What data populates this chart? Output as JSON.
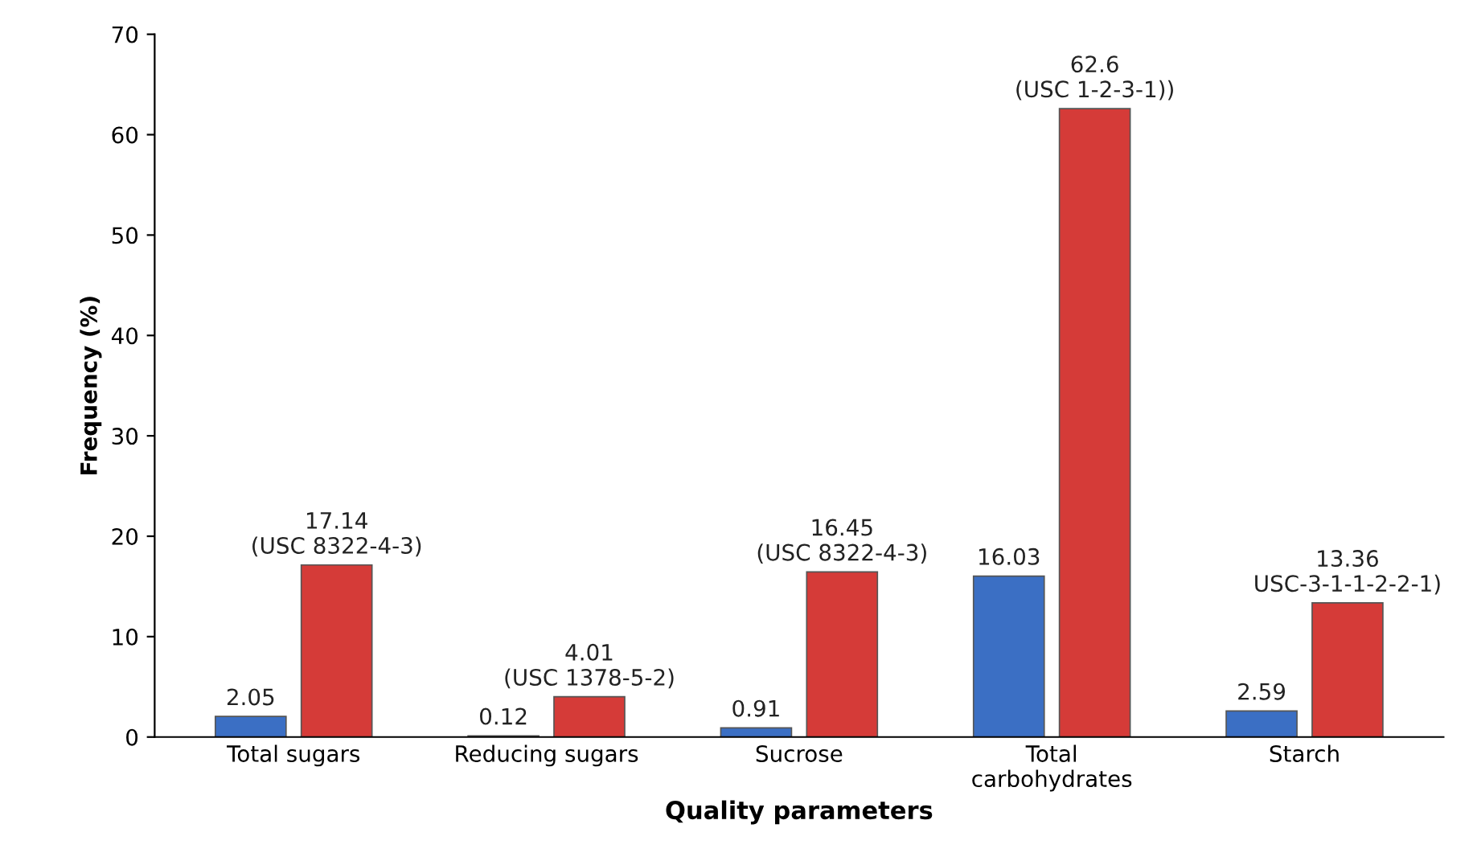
{
  "chart_data": {
    "type": "bar",
    "xlabel": "Quality parameters",
    "ylabel": "Frequency (%)",
    "categories": [
      "Total sugars",
      "Reducing sugars",
      "Sucrose",
      "Total\ncarbohydrates",
      "Starch"
    ],
    "series": [
      {
        "color": "#3b6fc4",
        "values": [
          2.05,
          0.12,
          0.91,
          16.03,
          2.59
        ],
        "value_labels": [
          "2.05",
          "0.12",
          "0.91",
          "16.03",
          "2.59"
        ]
      },
      {
        "color": "#d53b38",
        "values": [
          17.14,
          4.01,
          16.45,
          62.6,
          13.36
        ],
        "value_labels": [
          "17.14\n(USC 8322-4-3)",
          "4.01\n(USC 1378-5-2)",
          "16.45\n(USC 8322-4-3)",
          "62.6\n(USC 1-2-3-1))",
          "13.36\nUSC-3-1-1-2-2-1)"
        ]
      }
    ],
    "ylim": [
      0,
      70
    ],
    "yticks": [
      0,
      10,
      20,
      30,
      40,
      50,
      60,
      70
    ],
    "grid": false,
    "legend": false
  }
}
